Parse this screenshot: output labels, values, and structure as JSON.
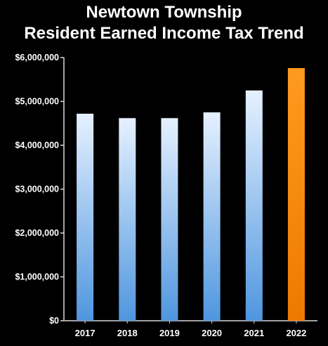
{
  "chart_data": {
    "type": "bar",
    "title_line1": "Newtown Township",
    "title_line2": "Resident Earned Income Tax Trend",
    "categories": [
      "2017",
      "2018",
      "2019",
      "2020",
      "2021",
      "2022"
    ],
    "values": [
      4720000,
      4620000,
      4620000,
      4750000,
      5250000,
      5760000
    ],
    "highlight_category": "2022",
    "bar_colors": {
      "default_top": "#e6f1ff",
      "default_bottom": "#4f96df",
      "highlight_top": "#ff9a1f",
      "highlight_bottom": "#ee7a00"
    },
    "ylim": [
      0,
      6000000
    ],
    "y_ticks": [
      {
        "value": 0,
        "label": "$0"
      },
      {
        "value": 1000000,
        "label": "$1,000,000"
      },
      {
        "value": 2000000,
        "label": "$2,000,000"
      },
      {
        "value": 3000000,
        "label": "$3,000,000"
      },
      {
        "value": 4000000,
        "label": "$4,000,000"
      },
      {
        "value": 5000000,
        "label": "$5,000,000"
      },
      {
        "value": 6000000,
        "label": "$6,000,000"
      }
    ],
    "xlabel": "",
    "ylabel": "",
    "grid": false,
    "background": "#000000",
    "text_color": "#ffffff",
    "axis_color": "#d8d8d8"
  }
}
